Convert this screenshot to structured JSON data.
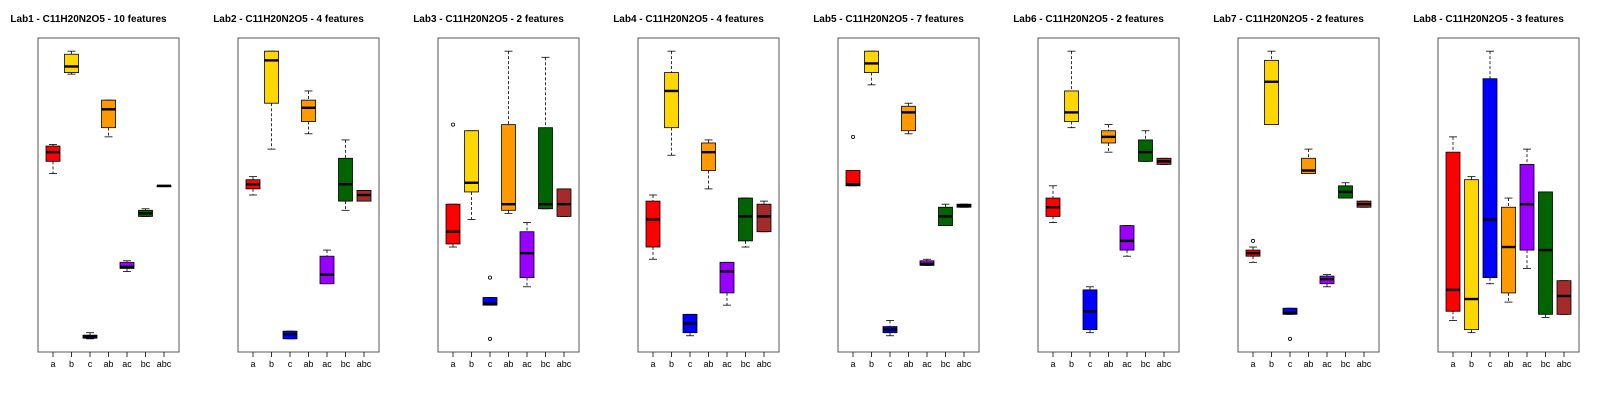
{
  "chart_data": [
    {
      "type": "boxplot",
      "title": "Lab1 - C11H20N2O5 - 10 features",
      "categories": [
        "a",
        "b",
        "c",
        "ab",
        "ac",
        "bc",
        "abc"
      ],
      "colors": [
        "#ff0000",
        "#ffd700",
        "#0000ff",
        "#ff9900",
        "#9900ff",
        "#006400",
        "#a52a2a"
      ],
      "grid": false,
      "series": [
        {
          "category": "a",
          "whisker_low": 0.57,
          "q1": 0.61,
          "median": 0.64,
          "q3": 0.66,
          "whisker_high": 0.665,
          "outliers": []
        },
        {
          "category": "b",
          "whisker_low": 0.895,
          "q1": 0.9,
          "median": 0.92,
          "q3": 0.96,
          "whisker_high": 0.97,
          "outliers": []
        },
        {
          "category": "c",
          "whisker_low": 0.03,
          "q1": 0.032,
          "median": 0.038,
          "q3": 0.042,
          "whisker_high": 0.05,
          "outliers": []
        },
        {
          "category": "ab",
          "whisker_low": 0.69,
          "q1": 0.72,
          "median": 0.78,
          "q3": 0.81,
          "whisker_high": 0.81,
          "outliers": []
        },
        {
          "category": "ac",
          "whisker_low": 0.25,
          "q1": 0.26,
          "median": 0.265,
          "q3": 0.28,
          "whisker_high": 0.285,
          "outliers": []
        },
        {
          "category": "bc",
          "whisker_low": 0.43,
          "q1": 0.43,
          "median": 0.44,
          "q3": 0.45,
          "whisker_high": 0.455,
          "outliers": []
        },
        {
          "category": "abc",
          "whisker_low": 0.53,
          "q1": 0.53,
          "median": 0.53,
          "q3": 0.53,
          "whisker_high": 0.53,
          "outliers": []
        }
      ]
    },
    {
      "type": "boxplot",
      "title": "Lab2 - C11H20N2O5 - 4 features",
      "categories": [
        "a",
        "b",
        "c",
        "ab",
        "ac",
        "bc",
        "abc"
      ],
      "colors": [
        "#ff0000",
        "#ffd700",
        "#0000ff",
        "#ff9900",
        "#9900ff",
        "#006400",
        "#a52a2a"
      ],
      "grid": false,
      "series": [
        {
          "category": "a",
          "whisker_low": 0.5,
          "q1": 0.52,
          "median": 0.535,
          "q3": 0.55,
          "whisker_high": 0.56,
          "outliers": []
        },
        {
          "category": "b",
          "whisker_low": 0.65,
          "q1": 0.8,
          "median": 0.94,
          "q3": 0.97,
          "whisker_high": 0.97,
          "outliers": []
        },
        {
          "category": "c",
          "whisker_low": 0.03,
          "q1": 0.03,
          "median": 0.045,
          "q3": 0.055,
          "whisker_high": 0.055,
          "outliers": []
        },
        {
          "category": "ab",
          "whisker_low": 0.7,
          "q1": 0.74,
          "median": 0.785,
          "q3": 0.81,
          "whisker_high": 0.84,
          "outliers": []
        },
        {
          "category": "ac",
          "whisker_low": 0.21,
          "q1": 0.21,
          "median": 0.24,
          "q3": 0.3,
          "whisker_high": 0.32,
          "outliers": []
        },
        {
          "category": "bc",
          "whisker_low": 0.45,
          "q1": 0.48,
          "median": 0.535,
          "q3": 0.62,
          "whisker_high": 0.68,
          "outliers": []
        },
        {
          "category": "abc",
          "whisker_low": 0.48,
          "q1": 0.48,
          "median": 0.5,
          "q3": 0.515,
          "whisker_high": 0.515,
          "outliers": []
        }
      ]
    },
    {
      "type": "boxplot",
      "title": "Lab3 - C11H20N2O5 - 2 features",
      "categories": [
        "a",
        "b",
        "c",
        "ab",
        "ac",
        "bc",
        "abc"
      ],
      "colors": [
        "#ff0000",
        "#ffd700",
        "#0000ff",
        "#ff9900",
        "#9900ff",
        "#006400",
        "#a52a2a"
      ],
      "grid": false,
      "series": [
        {
          "category": "a",
          "whisker_low": 0.33,
          "q1": 0.34,
          "median": 0.38,
          "q3": 0.47,
          "whisker_high": 0.47,
          "outliers": [
            0.73
          ]
        },
        {
          "category": "b",
          "whisker_low": 0.42,
          "q1": 0.51,
          "median": 0.54,
          "q3": 0.71,
          "whisker_high": 0.71,
          "outliers": []
        },
        {
          "category": "c",
          "whisker_low": 0.14,
          "q1": 0.14,
          "median": 0.145,
          "q3": 0.165,
          "whisker_high": 0.165,
          "outliers": [
            0.23,
            0.03
          ]
        },
        {
          "category": "ab",
          "whisker_low": 0.44,
          "q1": 0.45,
          "median": 0.47,
          "q3": 0.73,
          "whisker_high": 0.97,
          "outliers": []
        },
        {
          "category": "ac",
          "whisker_low": 0.2,
          "q1": 0.23,
          "median": 0.31,
          "q3": 0.38,
          "whisker_high": 0.41,
          "outliers": []
        },
        {
          "category": "bc",
          "whisker_low": 0.455,
          "q1": 0.455,
          "median": 0.47,
          "q3": 0.72,
          "whisker_high": 0.95,
          "outliers": []
        },
        {
          "category": "abc",
          "whisker_low": 0.43,
          "q1": 0.43,
          "median": 0.47,
          "q3": 0.52,
          "whisker_high": 0.52,
          "outliers": []
        }
      ]
    },
    {
      "type": "boxplot",
      "title": "Lab4 - C11H20N2O5 - 4 features",
      "categories": [
        "a",
        "b",
        "c",
        "ab",
        "ac",
        "bc",
        "abc"
      ],
      "colors": [
        "#ff0000",
        "#ffd700",
        "#0000ff",
        "#ff9900",
        "#9900ff",
        "#006400",
        "#a52a2a"
      ],
      "grid": false,
      "series": [
        {
          "category": "a",
          "whisker_low": 0.29,
          "q1": 0.33,
          "median": 0.42,
          "q3": 0.48,
          "whisker_high": 0.5,
          "outliers": []
        },
        {
          "category": "b",
          "whisker_low": 0.63,
          "q1": 0.72,
          "median": 0.84,
          "q3": 0.9,
          "whisker_high": 0.97,
          "outliers": []
        },
        {
          "category": "c",
          "whisker_low": 0.04,
          "q1": 0.05,
          "median": 0.08,
          "q3": 0.11,
          "whisker_high": 0.11,
          "outliers": []
        },
        {
          "category": "ab",
          "whisker_low": 0.52,
          "q1": 0.58,
          "median": 0.64,
          "q3": 0.67,
          "whisker_high": 0.68,
          "outliers": []
        },
        {
          "category": "ac",
          "whisker_low": 0.14,
          "q1": 0.18,
          "median": 0.25,
          "q3": 0.28,
          "whisker_high": 0.28,
          "outliers": []
        },
        {
          "category": "bc",
          "whisker_low": 0.33,
          "q1": 0.35,
          "median": 0.43,
          "q3": 0.49,
          "whisker_high": 0.49,
          "outliers": []
        },
        {
          "category": "abc",
          "whisker_low": 0.38,
          "q1": 0.38,
          "median": 0.43,
          "q3": 0.47,
          "whisker_high": 0.48,
          "outliers": []
        }
      ]
    },
    {
      "type": "boxplot",
      "title": "Lab5 - C11H20N2O5 - 7 features",
      "categories": [
        "a",
        "b",
        "c",
        "ab",
        "ac",
        "bc",
        "abc"
      ],
      "colors": [
        "#ff0000",
        "#ffd700",
        "#0000ff",
        "#ff9900",
        "#9900ff",
        "#006400",
        "#a52a2a"
      ],
      "grid": false,
      "series": [
        {
          "category": "a",
          "whisker_low": 0.53,
          "q1": 0.53,
          "median": 0.535,
          "q3": 0.58,
          "whisker_high": 0.58,
          "outliers": [
            0.69
          ]
        },
        {
          "category": "b",
          "whisker_low": 0.86,
          "q1": 0.9,
          "median": 0.93,
          "q3": 0.97,
          "whisker_high": 0.97,
          "outliers": []
        },
        {
          "category": "c",
          "whisker_low": 0.04,
          "q1": 0.05,
          "median": 0.06,
          "q3": 0.07,
          "whisker_high": 0.09,
          "outliers": []
        },
        {
          "category": "ab",
          "whisker_low": 0.7,
          "q1": 0.71,
          "median": 0.77,
          "q3": 0.79,
          "whisker_high": 0.8,
          "outliers": []
        },
        {
          "category": "ac",
          "whisker_low": 0.27,
          "q1": 0.27,
          "median": 0.275,
          "q3": 0.285,
          "whisker_high": 0.29,
          "outliers": []
        },
        {
          "category": "bc",
          "whisker_low": 0.4,
          "q1": 0.4,
          "median": 0.43,
          "q3": 0.46,
          "whisker_high": 0.47,
          "outliers": []
        },
        {
          "category": "abc",
          "whisker_low": 0.46,
          "q1": 0.46,
          "median": 0.465,
          "q3": 0.47,
          "whisker_high": 0.47,
          "outliers": []
        }
      ]
    },
    {
      "type": "boxplot",
      "title": "Lab6 - C11H20N2O5 - 2 features",
      "categories": [
        "a",
        "b",
        "c",
        "ab",
        "ac",
        "bc",
        "abc"
      ],
      "colors": [
        "#ff0000",
        "#ffd700",
        "#0000ff",
        "#ff9900",
        "#9900ff",
        "#006400",
        "#a52a2a"
      ],
      "grid": false,
      "series": [
        {
          "category": "a",
          "whisker_low": 0.41,
          "q1": 0.43,
          "median": 0.46,
          "q3": 0.49,
          "whisker_high": 0.53,
          "outliers": []
        },
        {
          "category": "b",
          "whisker_low": 0.72,
          "q1": 0.74,
          "median": 0.77,
          "q3": 0.84,
          "whisker_high": 0.97,
          "outliers": []
        },
        {
          "category": "c",
          "whisker_low": 0.05,
          "q1": 0.06,
          "median": 0.12,
          "q3": 0.19,
          "whisker_high": 0.2,
          "outliers": []
        },
        {
          "category": "ab",
          "whisker_low": 0.64,
          "q1": 0.67,
          "median": 0.69,
          "q3": 0.71,
          "whisker_high": 0.73,
          "outliers": []
        },
        {
          "category": "ac",
          "whisker_low": 0.3,
          "q1": 0.32,
          "median": 0.35,
          "q3": 0.4,
          "whisker_high": 0.4,
          "outliers": []
        },
        {
          "category": "bc",
          "whisker_low": 0.61,
          "q1": 0.61,
          "median": 0.64,
          "q3": 0.68,
          "whisker_high": 0.71,
          "outliers": []
        },
        {
          "category": "abc",
          "whisker_low": 0.6,
          "q1": 0.6,
          "median": 0.61,
          "q3": 0.62,
          "whisker_high": 0.62,
          "outliers": []
        }
      ]
    },
    {
      "type": "boxplot",
      "title": "Lab7 - C11H20N2O5 - 2 features",
      "categories": [
        "a",
        "b",
        "c",
        "ab",
        "ac",
        "bc",
        "abc"
      ],
      "colors": [
        "#ff0000",
        "#ffd700",
        "#0000ff",
        "#ff9900",
        "#9900ff",
        "#006400",
        "#a52a2a"
      ],
      "grid": false,
      "series": [
        {
          "category": "a",
          "whisker_low": 0.28,
          "q1": 0.3,
          "median": 0.31,
          "q3": 0.32,
          "whisker_high": 0.33,
          "outliers": [
            0.35
          ]
        },
        {
          "category": "b",
          "whisker_low": 0.73,
          "q1": 0.73,
          "median": 0.87,
          "q3": 0.94,
          "whisker_high": 0.97,
          "outliers": []
        },
        {
          "category": "c",
          "whisker_low": 0.11,
          "q1": 0.11,
          "median": 0.115,
          "q3": 0.13,
          "whisker_high": 0.13,
          "outliers": [
            0.03
          ]
        },
        {
          "category": "ab",
          "whisker_low": 0.57,
          "q1": 0.57,
          "median": 0.58,
          "q3": 0.62,
          "whisker_high": 0.65,
          "outliers": []
        },
        {
          "category": "ac",
          "whisker_low": 0.2,
          "q1": 0.21,
          "median": 0.225,
          "q3": 0.235,
          "whisker_high": 0.24,
          "outliers": []
        },
        {
          "category": "bc",
          "whisker_low": 0.49,
          "q1": 0.49,
          "median": 0.51,
          "q3": 0.53,
          "whisker_high": 0.54,
          "outliers": []
        },
        {
          "category": "abc",
          "whisker_low": 0.46,
          "q1": 0.46,
          "median": 0.47,
          "q3": 0.48,
          "whisker_high": 0.48,
          "outliers": []
        }
      ]
    },
    {
      "type": "boxplot",
      "title": "Lab8 - C11H20N2O5 - 3 features",
      "categories": [
        "a",
        "b",
        "c",
        "ab",
        "ac",
        "bc",
        "abc"
      ],
      "colors": [
        "#ff0000",
        "#ffd700",
        "#0000ff",
        "#ff9900",
        "#9900ff",
        "#006400",
        "#a52a2a"
      ],
      "grid": false,
      "series": [
        {
          "category": "a",
          "whisker_low": 0.09,
          "q1": 0.12,
          "median": 0.19,
          "q3": 0.64,
          "whisker_high": 0.69,
          "outliers": []
        },
        {
          "category": "b",
          "whisker_low": 0.05,
          "q1": 0.06,
          "median": 0.16,
          "q3": 0.55,
          "whisker_high": 0.56,
          "outliers": []
        },
        {
          "category": "c",
          "whisker_low": 0.21,
          "q1": 0.23,
          "median": 0.42,
          "q3": 0.88,
          "whisker_high": 0.97,
          "outliers": []
        },
        {
          "category": "ab",
          "whisker_low": 0.15,
          "q1": 0.18,
          "median": 0.33,
          "q3": 0.46,
          "whisker_high": 0.49,
          "outliers": []
        },
        {
          "category": "ac",
          "whisker_low": 0.26,
          "q1": 0.32,
          "median": 0.47,
          "q3": 0.6,
          "whisker_high": 0.65,
          "outliers": []
        },
        {
          "category": "bc",
          "whisker_low": 0.1,
          "q1": 0.11,
          "median": 0.32,
          "q3": 0.51,
          "whisker_high": 0.51,
          "outliers": []
        },
        {
          "category": "abc",
          "whisker_low": 0.11,
          "q1": 0.11,
          "median": 0.17,
          "q3": 0.22,
          "whisker_high": 0.22,
          "outliers": []
        }
      ]
    }
  ]
}
